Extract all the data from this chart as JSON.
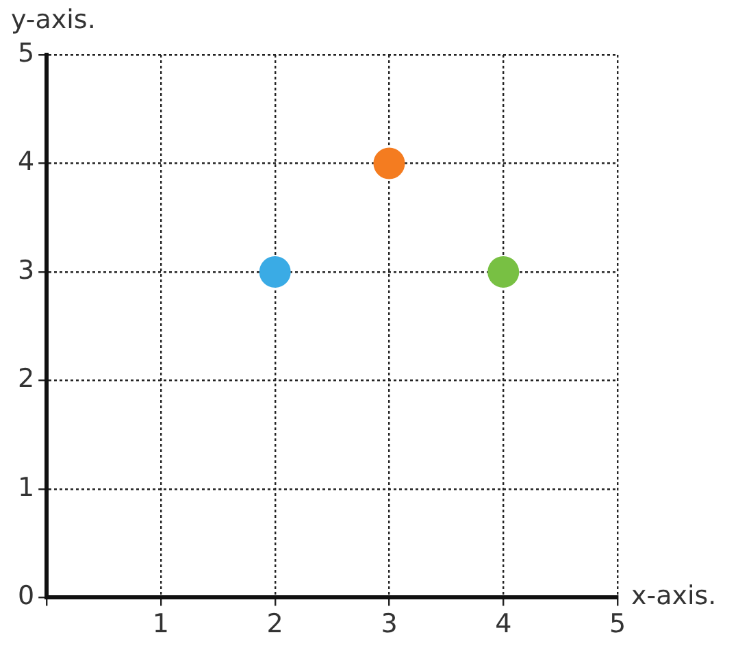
{
  "chart_data": {
    "type": "scatter",
    "xlabel": "x-axis.",
    "ylabel": "y-axis.",
    "x": [
      2,
      3,
      4
    ],
    "values": [
      3,
      4,
      3
    ],
    "colors": [
      "#3aabe5",
      "#f47c20",
      "#78c043"
    ],
    "marker": "circle",
    "xlim": [
      0,
      5
    ],
    "ylim": [
      0,
      5
    ],
    "xticks": [
      {
        "value": 0,
        "label": null
      },
      1,
      2,
      3,
      4,
      5
    ],
    "yticks": [
      0,
      1,
      2,
      3,
      4,
      5
    ],
    "grid": true
  }
}
